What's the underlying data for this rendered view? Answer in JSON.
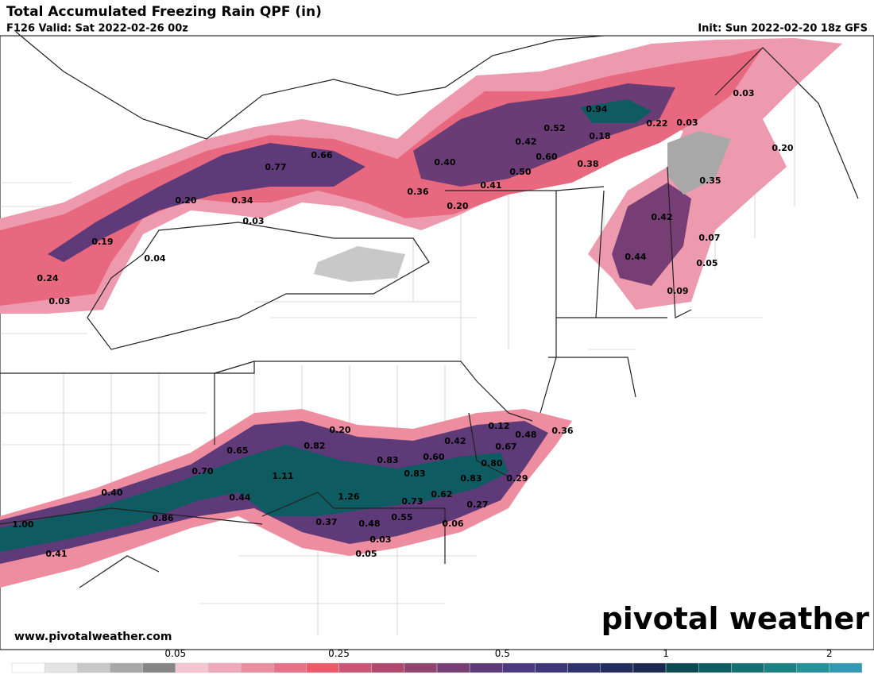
{
  "header": {
    "title": "Total Accumulated Freezing Rain QPF (in)",
    "valid": "F126 Valid: Sat 2022-02-26 00z",
    "init": "Init: Sun 2022-02-20 18z GFS"
  },
  "map": {
    "point_labels": [
      "0.94",
      "0.52",
      "0.22",
      "0.03",
      "0.03",
      "0.18",
      "0.42",
      "0.60",
      "0.20",
      "0.66",
      "0.77",
      "0.40",
      "0.38",
      "0.50",
      "0.35",
      "0.41",
      "0.36",
      "0.20",
      "0.34",
      "0.20",
      "0.42",
      "0.03",
      "0.07",
      "0.19",
      "0.04",
      "0.44",
      "0.05",
      "0.24",
      "0.09",
      "0.03",
      "0.12",
      "0.20",
      "0.48",
      "0.36",
      "0.42",
      "0.82",
      "0.67",
      "0.65",
      "0.60",
      "0.83",
      "0.80",
      "0.70",
      "0.83",
      "1.11",
      "0.83",
      "0.29",
      "0.40",
      "0.44",
      "1.26",
      "0.73",
      "0.62",
      "0.27",
      "0.86",
      "0.55",
      "0.37",
      "0.48",
      "1.00",
      "0.06",
      "0.03",
      "0.41",
      "0.05"
    ]
  },
  "branding": {
    "url": "www.pivotalweather.com",
    "logo": "pivotal weather"
  },
  "colorbar": {
    "colors": [
      "#ffffff",
      "#e4e4e4",
      "#c8c8c8",
      "#a8a8a8",
      "#868686",
      "#f4c6d2",
      "#eeaabb",
      "#ea8ea2",
      "#e6728a",
      "#f05a68",
      "#cc5474",
      "#ae4a6e",
      "#904470",
      "#763e74",
      "#5e3a78",
      "#4c3a80",
      "#3e377a",
      "#30336c",
      "#242c5e",
      "#1a2852",
      "#0c4a52",
      "#0e5c62",
      "#146e72",
      "#1a8084",
      "#249298",
      "#3498b4"
    ],
    "ticks": [
      0.05,
      0.25,
      0.5,
      1,
      2
    ]
  }
}
